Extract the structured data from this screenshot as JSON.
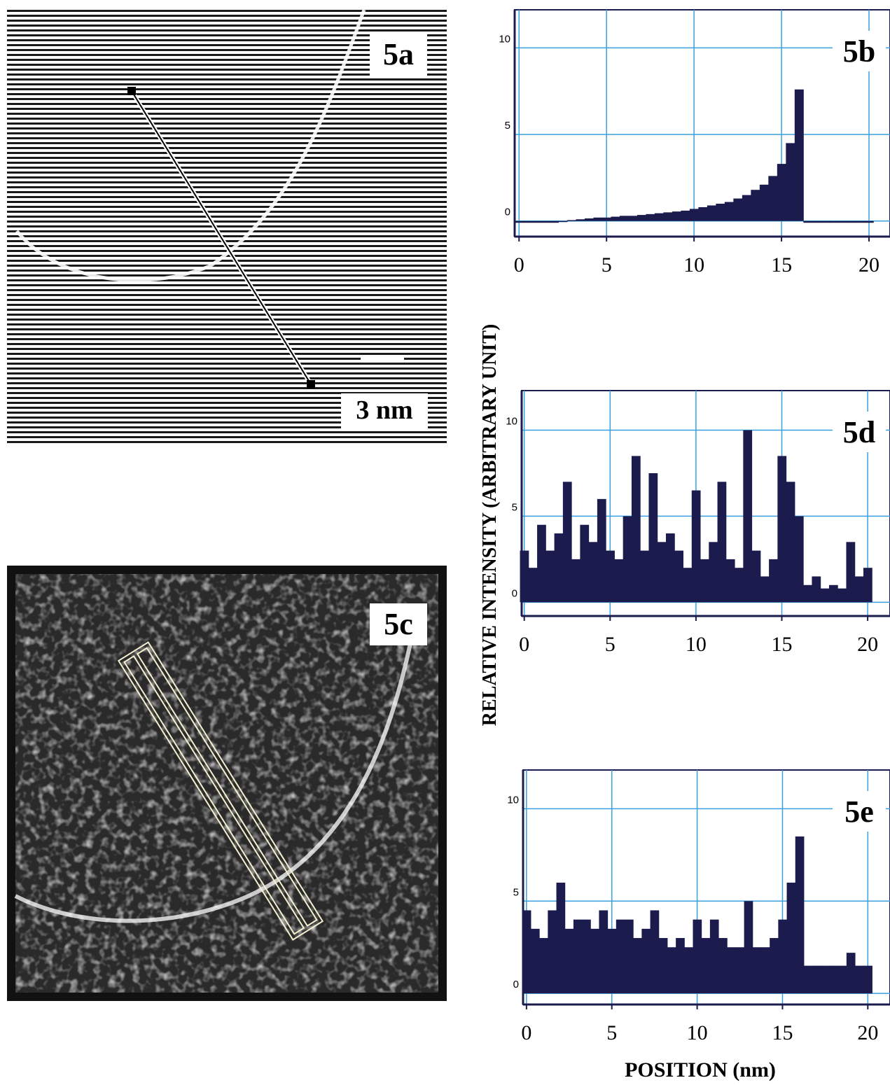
{
  "images": [
    {
      "label": "5a",
      "scale_bar": "3 nm"
    },
    {
      "label": "5c"
    }
  ],
  "axis_labels": {
    "y": "RELATIVE INTENSITY (ARBITRARY UNIT)",
    "x": "POSITION (nm)"
  },
  "chart_data": [
    {
      "type": "bar",
      "title": "5b",
      "color": "#1b1b4d",
      "grid": true,
      "grid_color": "#3a9fe0",
      "x": [
        0,
        0.5,
        1,
        1.5,
        2,
        2.5,
        3,
        3.5,
        4,
        4.5,
        5,
        5.5,
        6,
        6.5,
        7,
        7.5,
        8,
        8.5,
        9,
        9.5,
        10,
        10.5,
        11,
        11.5,
        12,
        12.5,
        13,
        13.5,
        14,
        14.5,
        15,
        15.5,
        16,
        16.5,
        17,
        17.5,
        18,
        18.5,
        19,
        19.5,
        20
      ],
      "values": [
        -0.1,
        -0.1,
        -0.1,
        -0.1,
        -0.1,
        0,
        0.05,
        0.1,
        0.15,
        0.2,
        0.2,
        0.25,
        0.3,
        0.3,
        0.35,
        0.4,
        0.45,
        0.5,
        0.55,
        0.6,
        0.7,
        0.8,
        0.9,
        1.0,
        1.1,
        1.3,
        1.5,
        1.8,
        2.1,
        2.6,
        3.3,
        4.5,
        7.6,
        -0.1,
        -0.1,
        -0.1,
        -0.1,
        -0.1,
        -0.1,
        -0.1,
        -0.1
      ],
      "xlim": [
        -0.25,
        21.2
      ],
      "ylim": [
        -0.9,
        12.2
      ],
      "xticks": [
        0,
        5,
        10,
        15,
        20
      ],
      "yticks": [
        0,
        5,
        10
      ]
    },
    {
      "type": "bar",
      "title": "5d",
      "color": "#1b1b4d",
      "grid": true,
      "grid_color": "#3a9fe0",
      "x": [
        0,
        0.5,
        1,
        1.5,
        2,
        2.5,
        3,
        3.5,
        4,
        4.5,
        5,
        5.5,
        6,
        6.5,
        7,
        7.5,
        8,
        8.5,
        9,
        9.5,
        10,
        10.5,
        11,
        11.5,
        12,
        12.5,
        13,
        13.5,
        14,
        14.5,
        15,
        15.5,
        16,
        16.5,
        17,
        17.5,
        18,
        18.5,
        19,
        19.5,
        20
      ],
      "values": [
        3,
        2,
        4.5,
        3,
        4,
        7,
        2.5,
        4.5,
        3.5,
        6,
        3,
        2.5,
        5,
        8.5,
        3,
        7.5,
        3.5,
        4,
        3,
        2,
        6.5,
        2.5,
        3.5,
        7,
        2.5,
        2,
        10,
        3,
        1.5,
        2.5,
        8.5,
        7,
        5,
        1,
        1.5,
        0.8,
        1,
        0.8,
        3.5,
        1.5,
        2
      ],
      "xlim": [
        -0.15,
        21.3
      ],
      "ylim": [
        -0.8,
        12.3
      ],
      "xticks": [
        0,
        5,
        10,
        15,
        20
      ],
      "yticks": [
        0,
        5,
        10
      ]
    },
    {
      "type": "bar",
      "title": "5e",
      "color": "#1b1b4d",
      "grid": true,
      "grid_color": "#3a9fe0",
      "x": [
        0,
        0.5,
        1,
        1.5,
        2,
        2.5,
        3,
        3.5,
        4,
        4.5,
        5,
        5.5,
        6,
        6.5,
        7,
        7.5,
        8,
        8.5,
        9,
        9.5,
        10,
        10.5,
        11,
        11.5,
        12,
        12.5,
        13,
        13.5,
        14,
        14.5,
        15,
        15.5,
        16,
        16.5,
        17,
        17.5,
        18,
        18.5,
        19,
        19.5,
        20
      ],
      "values": [
        4.5,
        3.5,
        3,
        4.5,
        6,
        3.5,
        4,
        4,
        3.5,
        4.5,
        3.5,
        4,
        4,
        3,
        3.5,
        4.5,
        3,
        2.5,
        3,
        2.5,
        4,
        3,
        4,
        3,
        2.5,
        2.5,
        5,
        2.5,
        2.5,
        3,
        4,
        6,
        8.5,
        1.5,
        1.5,
        1.5,
        1.5,
        1.5,
        2.2,
        1.5,
        1.5
      ],
      "xlim": [
        -0.2,
        21.3
      ],
      "ylim": [
        -0.6,
        12.1
      ],
      "xticks": [
        0,
        5,
        10,
        15,
        20
      ],
      "yticks": [
        0,
        5,
        10
      ]
    }
  ]
}
